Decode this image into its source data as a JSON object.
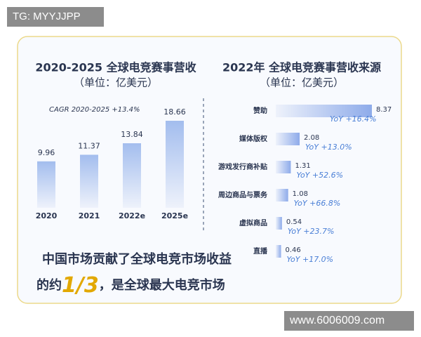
{
  "watermark": "TG: MYYJJPP",
  "site": "www.6006009.com",
  "conclusion": {
    "line1": "中国市场贡献了全球电竞市场收益",
    "line2_start": "的约",
    "highlight": "1/3",
    "line2_end": "，是全球最大电竞市场"
  },
  "chart_data": [
    {
      "type": "bar",
      "title": "2020-2025 全球电竞赛事营收",
      "subtitle": "（单位：亿美元）",
      "annotation": "CAGR 2020-2025 +13.4%",
      "categories": [
        "2020",
        "2021",
        "2022e",
        "2025e"
      ],
      "values": [
        9.96,
        11.37,
        13.84,
        18.66
      ],
      "color": "#a3bdee"
    },
    {
      "type": "hbar",
      "title": "2022年 全球电竞赛事营收来源",
      "subtitle": "（单位：亿美元）",
      "categories": [
        "赞助",
        "媒体版权",
        "游戏发行商补贴",
        "周边商品与票务",
        "虚拟商品",
        "直播"
      ],
      "values": [
        8.37,
        2.08,
        1.31,
        1.08,
        0.54,
        0.46
      ],
      "yoy_labels": [
        "YoY +16.4%",
        "YoY +13.0%",
        "YoY +52.6%",
        "YoY +66.8%",
        "YoY +23.7%",
        "YoY +17.0%"
      ],
      "color": "#8eabea"
    }
  ]
}
